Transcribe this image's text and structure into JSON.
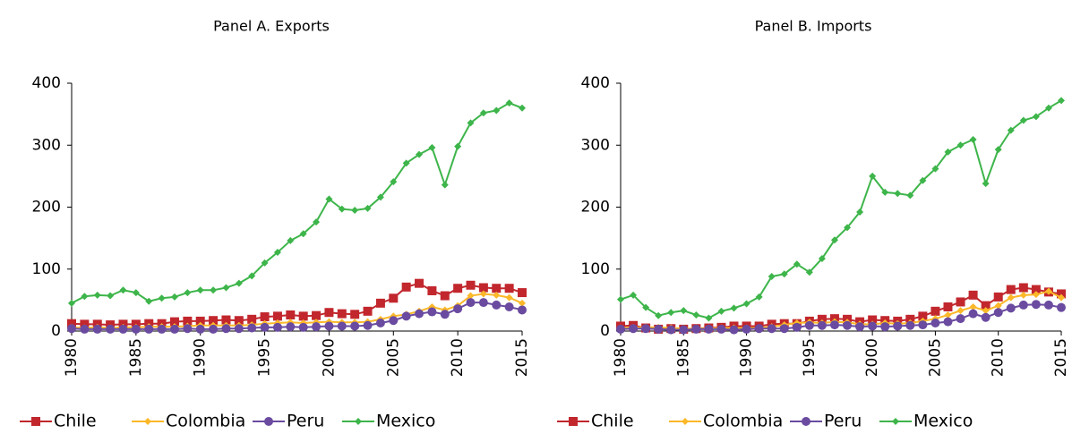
{
  "chart_data": [
    {
      "type": "line",
      "title": "Panel A. Exports",
      "x": [
        1980,
        1981,
        1982,
        1983,
        1984,
        1985,
        1986,
        1987,
        1988,
        1989,
        1990,
        1991,
        1992,
        1993,
        1994,
        1995,
        1996,
        1997,
        1998,
        1999,
        2000,
        2001,
        2002,
        2003,
        2004,
        2005,
        2006,
        2007,
        2008,
        2009,
        2010,
        2011,
        2012,
        2013,
        2014,
        2015
      ],
      "xlim": [
        1980,
        2015
      ],
      "xticks": [
        1980,
        1985,
        1990,
        1995,
        2000,
        2005,
        2010,
        2015
      ],
      "ylim": [
        0,
        400
      ],
      "yticks": [
        0,
        100,
        200,
        300,
        400
      ],
      "series": [
        {
          "name": "Chile",
          "color": "#c1272d",
          "marker": "square",
          "values": [
            12,
            11,
            11,
            10,
            11,
            11,
            12,
            12,
            15,
            16,
            16,
            17,
            18,
            17,
            19,
            23,
            24,
            26,
            24,
            25,
            30,
            28,
            27,
            32,
            45,
            53,
            71,
            77,
            65,
            57,
            69,
            74,
            70,
            69,
            69,
            62
          ]
        },
        {
          "name": "Colombia",
          "color": "#fbb829",
          "marker": "diamond",
          "values": [
            6,
            5,
            6,
            5,
            6,
            6,
            7,
            7,
            7,
            8,
            9,
            9,
            9,
            9,
            10,
            12,
            13,
            14,
            13,
            14,
            15,
            14,
            14,
            15,
            19,
            24,
            27,
            32,
            39,
            34,
            41,
            57,
            60,
            58,
            54,
            45
          ]
        },
        {
          "name": "Peru",
          "color": "#6a4ba0",
          "marker": "circle",
          "values": [
            4,
            3,
            3,
            3,
            3,
            3,
            3,
            3,
            3,
            4,
            3,
            3,
            4,
            4,
            5,
            6,
            6,
            7,
            6,
            7,
            8,
            8,
            8,
            9,
            13,
            17,
            24,
            28,
            31,
            27,
            36,
            46,
            46,
            42,
            39,
            34
          ]
        },
        {
          "name": "Mexico",
          "color": "#3db54a",
          "marker": "diamond",
          "values": [
            45,
            56,
            58,
            57,
            66,
            62,
            48,
            53,
            55,
            62,
            66,
            66,
            70,
            77,
            89,
            110,
            127,
            146,
            157,
            176,
            213,
            197,
            195,
            198,
            216,
            241,
            271,
            285,
            296,
            236,
            298,
            336,
            352,
            356,
            368,
            360
          ]
        }
      ]
    },
    {
      "type": "line",
      "title": "Panel B. Imports",
      "x": [
        1980,
        1981,
        1982,
        1983,
        1984,
        1985,
        1986,
        1987,
        1988,
        1989,
        1990,
        1991,
        1992,
        1993,
        1994,
        1995,
        1996,
        1997,
        1998,
        1999,
        2000,
        2001,
        2002,
        2003,
        2004,
        2005,
        2006,
        2007,
        2008,
        2009,
        2010,
        2011,
        2012,
        2013,
        2014,
        2015
      ],
      "xlim": [
        1980,
        2015
      ],
      "xticks": [
        1980,
        1985,
        1990,
        1995,
        2000,
        2005,
        2010,
        2015
      ],
      "ylim": [
        0,
        400
      ],
      "yticks": [
        0,
        100,
        200,
        300,
        400
      ],
      "series": [
        {
          "name": "Chile",
          "color": "#c1272d",
          "marker": "square",
          "values": [
            8,
            9,
            5,
            3,
            4,
            3,
            4,
            5,
            6,
            8,
            8,
            8,
            11,
            12,
            12,
            16,
            19,
            20,
            19,
            15,
            18,
            17,
            16,
            19,
            24,
            32,
            39,
            47,
            58,
            41,
            55,
            67,
            70,
            67,
            63,
            60
          ]
        },
        {
          "name": "Colombia",
          "color": "#fbb829",
          "marker": "diamond",
          "values": [
            5,
            6,
            6,
            6,
            5,
            4,
            4,
            4,
            5,
            5,
            5,
            5,
            7,
            10,
            13,
            14,
            13,
            15,
            14,
            11,
            11,
            13,
            12,
            13,
            16,
            20,
            26,
            33,
            39,
            33,
            41,
            54,
            58,
            59,
            64,
            54
          ]
        },
        {
          "name": "Peru",
          "color": "#6a4ba0",
          "marker": "circle",
          "values": [
            3,
            4,
            4,
            3,
            2,
            2,
            3,
            3,
            3,
            2,
            3,
            4,
            4,
            4,
            6,
            9,
            9,
            10,
            9,
            7,
            8,
            7,
            8,
            9,
            10,
            13,
            15,
            20,
            28,
            22,
            30,
            37,
            42,
            43,
            42,
            38
          ]
        },
        {
          "name": "Mexico",
          "color": "#3db54a",
          "marker": "diamond",
          "values": [
            51,
            58,
            38,
            25,
            30,
            33,
            26,
            21,
            32,
            37,
            44,
            55,
            88,
            92,
            108,
            95,
            117,
            147,
            167,
            192,
            250,
            224,
            222,
            219,
            243,
            262,
            289,
            300,
            309,
            238,
            293,
            324,
            340,
            346,
            360,
            372
          ]
        }
      ]
    }
  ]
}
